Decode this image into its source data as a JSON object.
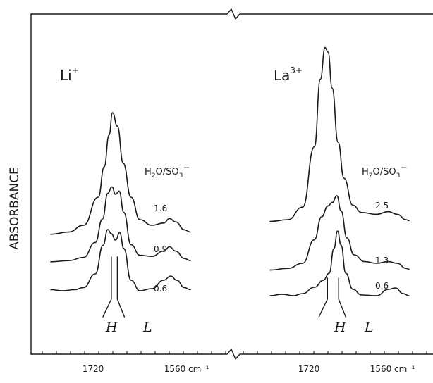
{
  "chart_data": {
    "type": "line",
    "ylabel": "ABSORBANCE",
    "xlabel": "",
    "xunit": "cm⁻¹",
    "panels": [
      {
        "ion": "Li",
        "charge": "+",
        "ratio_label": "H2O/SO3−",
        "series": [
          {
            "ratio": "1.6",
            "points": [
              [
                1780,
                0.12
              ],
              [
                1750,
                0.14
              ],
              [
                1725,
                0.2
              ],
              [
                1700,
                0.45
              ],
              [
                1690,
                0.72
              ],
              [
                1682,
                1.0
              ],
              [
                1676,
                1.2
              ],
              [
                1668,
                1.08
              ],
              [
                1658,
                0.75
              ],
              [
                1645,
                0.45
              ],
              [
                1630,
                0.25
              ],
              [
                1610,
                0.2
              ],
              [
                1590,
                0.22
              ],
              [
                1580,
                0.26
              ],
              [
                1570,
                0.23
              ],
              [
                1555,
                0.16
              ],
              [
                1545,
                0.14
              ]
            ]
          },
          {
            "ratio": "0.9",
            "points": [
              [
                1780,
                0.12
              ],
              [
                1750,
                0.13
              ],
              [
                1725,
                0.16
              ],
              [
                1705,
                0.3
              ],
              [
                1693,
                0.52
              ],
              [
                1684,
                0.76
              ],
              [
                1677,
                0.82
              ],
              [
                1671,
                0.75
              ],
              [
                1665,
                0.78
              ],
              [
                1657,
                0.58
              ],
              [
                1645,
                0.28
              ],
              [
                1630,
                0.18
              ],
              [
                1610,
                0.17
              ],
              [
                1590,
                0.22
              ],
              [
                1580,
                0.26
              ],
              [
                1570,
                0.22
              ],
              [
                1555,
                0.15
              ],
              [
                1545,
                0.13
              ]
            ]
          },
          {
            "ratio": "0.6",
            "points": [
              [
                1780,
                0.13
              ],
              [
                1760,
                0.12
              ],
              [
                1740,
                0.13
              ],
              [
                1725,
                0.15
              ],
              [
                1705,
                0.28
              ],
              [
                1692,
                0.55
              ],
              [
                1684,
                0.7
              ],
              [
                1678,
                0.66
              ],
              [
                1671,
                0.6
              ],
              [
                1664,
                0.67
              ],
              [
                1657,
                0.52
              ],
              [
                1645,
                0.22
              ],
              [
                1630,
                0.12
              ],
              [
                1610,
                0.14
              ],
              [
                1590,
                0.22
              ],
              [
                1578,
                0.26
              ],
              [
                1568,
                0.22
              ],
              [
                1555,
                0.15
              ],
              [
                1545,
                0.13
              ]
            ]
          }
        ],
        "markers": [
          {
            "label": "H",
            "x": 1678
          },
          {
            "label": "L",
            "x": 1668
          }
        ]
      },
      {
        "ion": "La",
        "charge": "3+",
        "ratio_label": "H2O/SO3−",
        "series": [
          {
            "ratio": "2.5",
            "points": [
              [
                1780,
                0.12
              ],
              [
                1750,
                0.14
              ],
              [
                1725,
                0.28
              ],
              [
                1705,
                0.95
              ],
              [
                1695,
                1.7
              ],
              [
                1687,
                2.05
              ],
              [
                1682,
                2.0
              ],
              [
                1675,
                1.6
              ],
              [
                1665,
                1.0
              ],
              [
                1655,
                0.6
              ],
              [
                1640,
                0.3
              ],
              [
                1625,
                0.22
              ],
              [
                1600,
                0.2
              ],
              [
                1580,
                0.23
              ],
              [
                1565,
                0.2
              ],
              [
                1550,
                0.14
              ],
              [
                1545,
                0.13
              ]
            ]
          },
          {
            "ratio": "1.3",
            "points": [
              [
                1780,
                0.12
              ],
              [
                1750,
                0.14
              ],
              [
                1725,
                0.2
              ],
              [
                1705,
                0.48
              ],
              [
                1693,
                0.75
              ],
              [
                1682,
                0.88
              ],
              [
                1675,
                0.92
              ],
              [
                1667,
                1.0
              ],
              [
                1660,
                0.82
              ],
              [
                1650,
                0.5
              ],
              [
                1638,
                0.3
              ],
              [
                1620,
                0.22
              ],
              [
                1600,
                0.2
              ],
              [
                1580,
                0.22
              ],
              [
                1565,
                0.2
              ],
              [
                1550,
                0.14
              ],
              [
                1545,
                0.13
              ]
            ]
          },
          {
            "ratio": "0.6",
            "points": [
              [
                1780,
                0.13
              ],
              [
                1760,
                0.15
              ],
              [
                1740,
                0.13
              ],
              [
                1725,
                0.16
              ],
              [
                1705,
                0.25
              ],
              [
                1690,
                0.35
              ],
              [
                1680,
                0.45
              ],
              [
                1672,
                0.8
              ],
              [
                1666,
                1.05
              ],
              [
                1660,
                0.85
              ],
              [
                1652,
                0.45
              ],
              [
                1640,
                0.22
              ],
              [
                1625,
                0.14
              ],
              [
                1600,
                0.13
              ],
              [
                1580,
                0.22
              ],
              [
                1568,
                0.24
              ],
              [
                1555,
                0.16
              ],
              [
                1545,
                0.13
              ]
            ]
          }
        ],
        "markers": [
          {
            "label": "H",
            "x": 1683
          },
          {
            "label": "L",
            "x": 1664
          }
        ]
      }
    ],
    "xticks": [
      {
        "label": "1720",
        "x": 1720
      },
      {
        "label": "1560",
        "unit": "cm⁻¹",
        "x": 1560
      }
    ],
    "xrange": [
      1780,
      1545
    ],
    "grid": false
  }
}
